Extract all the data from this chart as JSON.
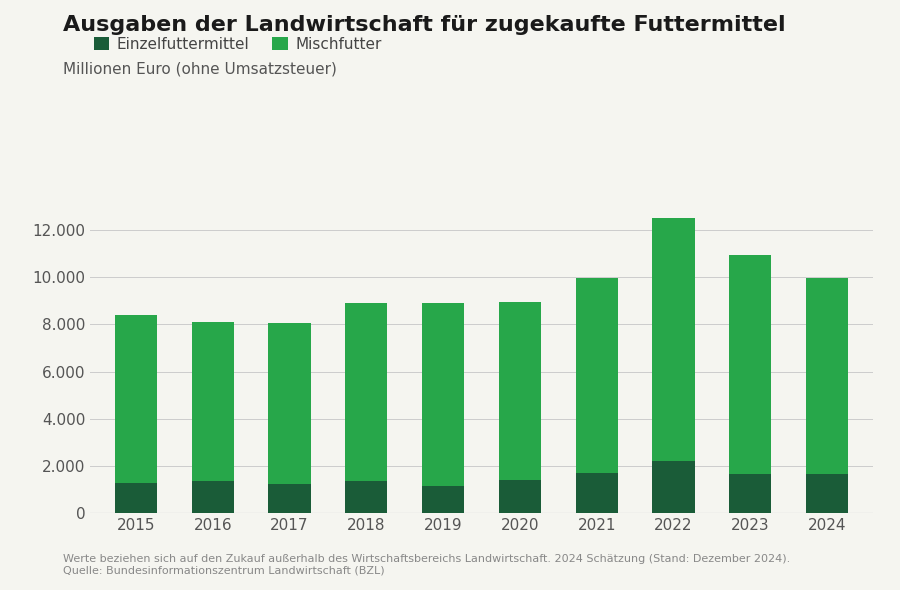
{
  "title": "Ausgaben der Landwirtschaft für zugekaufte Futtermittel",
  "subtitle": "Millionen Euro (ohne Umsatzsteuer)",
  "years": [
    2015,
    2016,
    2017,
    2018,
    2019,
    2020,
    2021,
    2022,
    2023,
    2024
  ],
  "einzelfuttermittel": [
    1300,
    1350,
    1250,
    1350,
    1150,
    1400,
    1700,
    2200,
    1650,
    1650
  ],
  "mischfutter": [
    7100,
    6750,
    6800,
    7550,
    7750,
    7550,
    8250,
    10300,
    9300,
    8300
  ],
  "color_einzelfuttermittel": "#1a5c38",
  "color_mischfutter": "#27a74a",
  "legend_einzelfuttermittel": "Einzelfuttermittel",
  "legend_mischfutter": "Mischfutter",
  "ylim": [
    0,
    13500
  ],
  "yticks": [
    0,
    2000,
    4000,
    6000,
    8000,
    10000,
    12000
  ],
  "footnote_line1": "Werte beziehen sich auf den Zukauf außerhalb des Wirtschaftsbereichs Landwirtschaft. 2024 Schätzung (Stand: Dezember 2024).",
  "footnote_line2": "Quelle: Bundesinformationszentrum Landwirtschaft (BZL)",
  "background_color": "#f5f5f0",
  "bar_width": 0.55
}
